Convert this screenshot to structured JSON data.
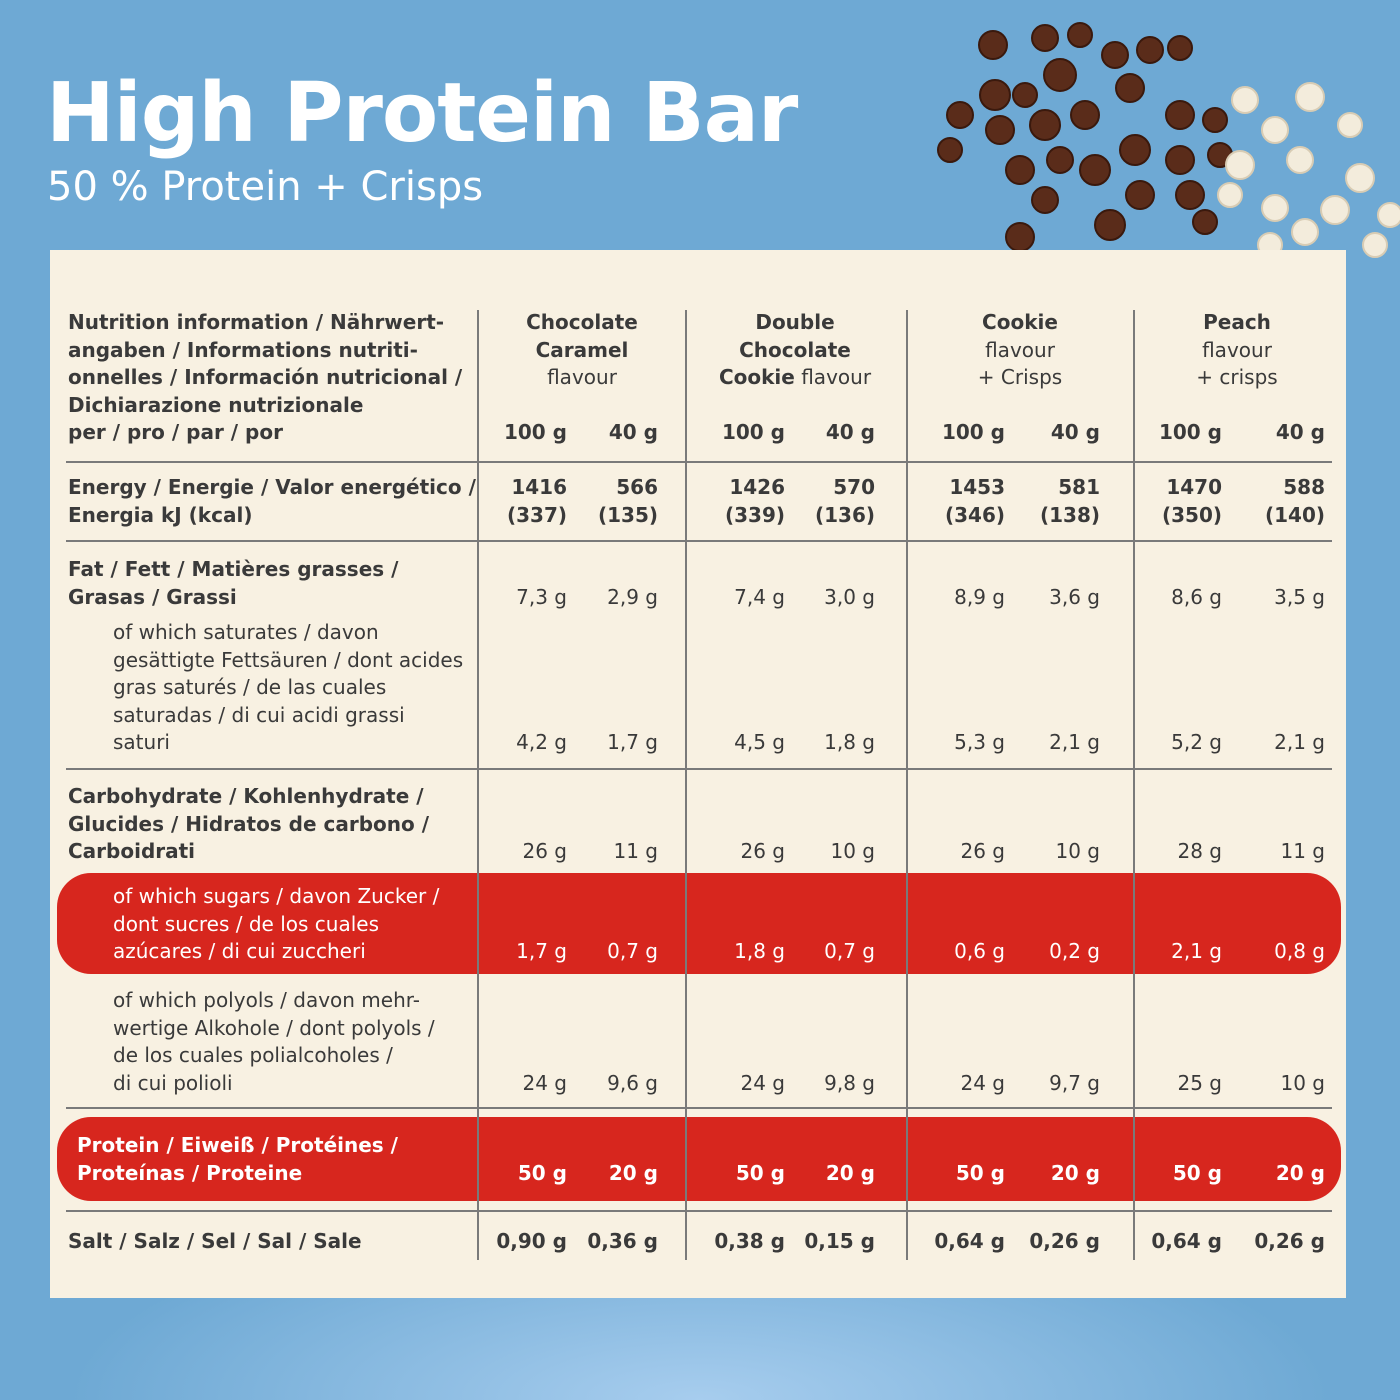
{
  "header": {
    "title": "High Protein Bar",
    "subtitle": "50 % Protein + Crisps"
  },
  "table": {
    "corner": [
      "Nutrition information / Nährwert-",
      "angaben / Informations nutriti-",
      "onnelles / Información nutricional /",
      "Dichiarazione nutrizionale",
      "per / pro / par / por"
    ],
    "products": [
      {
        "name": [
          "Chocolate",
          "Caramel"
        ],
        "note": [
          "flavour"
        ],
        "amounts": [
          "100 g",
          "40 g"
        ]
      },
      {
        "name": [
          "Double",
          "Chocolate",
          "Cookie"
        ],
        "note": [
          "flavour"
        ],
        "amounts": [
          "100 g",
          "40 g"
        ]
      },
      {
        "name": [
          "Cookie"
        ],
        "note": [
          "flavour",
          "+ Crisps"
        ],
        "amounts": [
          "100 g",
          "40 g"
        ]
      },
      {
        "name": [
          "Peach"
        ],
        "note": [
          "flavour",
          "+ crisps"
        ],
        "amounts": [
          "100 g",
          "40 g"
        ]
      }
    ],
    "rows": [
      {
        "label": [
          "Energy / Energie / Valor energético /",
          "Energia kJ (kcal)"
        ],
        "values": [
          [
            "1416",
            "(337)"
          ],
          [
            "566",
            "(135)"
          ],
          [
            "1426",
            "(339)"
          ],
          [
            "570",
            "(136)"
          ],
          [
            "1453",
            "(346)"
          ],
          [
            "581",
            "(138)"
          ],
          [
            "1470",
            "(350)"
          ],
          [
            "588",
            "(140)"
          ]
        ]
      },
      {
        "label": [
          "Fat / Fett / Matières grasses /",
          "Grasas / Grassi"
        ],
        "values": [
          "7,3 g",
          "2,9 g",
          "7,4 g",
          "3,0 g",
          "8,9 g",
          "3,6 g",
          "8,6 g",
          "3,5 g"
        ]
      },
      {
        "label": [
          "of which saturates / davon",
          "gesättigte Fettsäuren / dont acides",
          "gras saturés / de las cuales",
          "saturadas / di cui acidi grassi",
          "saturi"
        ],
        "values": [
          "4,2 g",
          "1,7 g",
          "4,5 g",
          "1,8 g",
          "5,3 g",
          "2,1 g",
          "5,2 g",
          "2,1 g"
        ]
      },
      {
        "label": [
          "Carbohydrate / Kohlenhydrate /",
          "Glucides / Hidratos de carbono /",
          "Carboidrati"
        ],
        "values": [
          "26 g",
          "11 g",
          "26 g",
          "10 g",
          "26 g",
          "10 g",
          "28 g",
          "11 g"
        ]
      },
      {
        "label": [
          "of which sugars / davon Zucker /",
          "dont sucres / de los cuales",
          "azúcares / di cui zuccheri"
        ],
        "values": [
          "1,7 g",
          "0,7 g",
          "1,8 g",
          "0,7 g",
          "0,6 g",
          "0,2 g",
          "2,1 g",
          "0,8 g"
        ]
      },
      {
        "label": [
          "of which polyols / davon mehr-",
          "wertige Alkohole / dont polyols /",
          "de los cuales polialcoholes /",
          "di cui polioli"
        ],
        "values": [
          "24 g",
          "9,6 g",
          "24 g",
          "9,8 g",
          "24 g",
          "9,7 g",
          "25 g",
          "10 g"
        ]
      },
      {
        "label": [
          "Protein / Eiweiß / Protéines /",
          "Proteínas / Proteine"
        ],
        "values": [
          "50 g",
          "20 g",
          "50 g",
          "20 g",
          "50 g",
          "20 g",
          "50 g",
          "20 g"
        ]
      },
      {
        "label": [
          "Salt / Salz / Sel / Sal / Sale"
        ],
        "values": [
          "0,90 g",
          "0,36 g",
          "0,38 g",
          "0,15 g",
          "0,64 g",
          "0,26 g",
          "0,64 g",
          "0,26 g"
        ]
      }
    ]
  }
}
